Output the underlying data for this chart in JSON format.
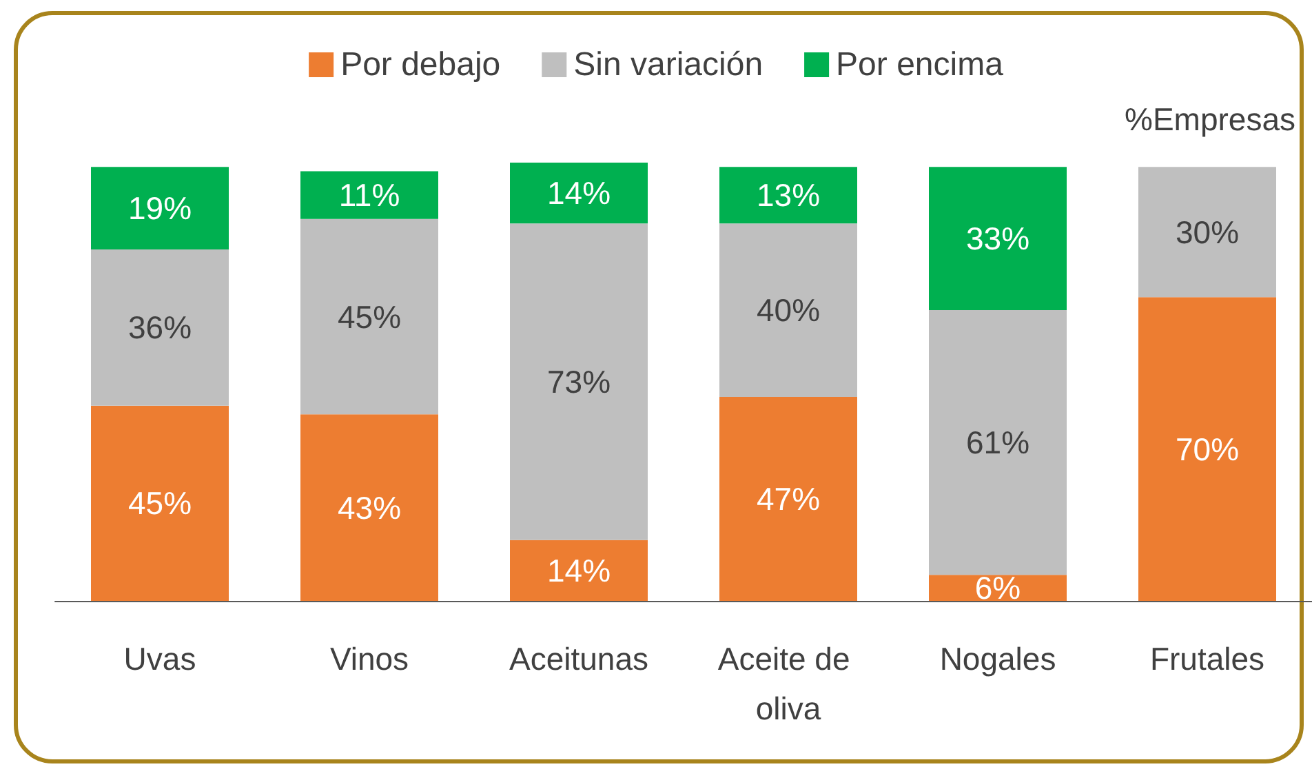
{
  "chart_data": {
    "type": "bar",
    "stacked": true,
    "categories": [
      "Uvas",
      "Vinos",
      "Aceitunas",
      "Aceite de oliva",
      "Nogales",
      "Frutales"
    ],
    "series": [
      {
        "name": "Por debajo",
        "color": "#ed7d31",
        "values": [
          45,
          43,
          14,
          47,
          6,
          70
        ],
        "value_labels": [
          "45%",
          "43%",
          "14%",
          "47%",
          "6%",
          "70%"
        ]
      },
      {
        "name": "Sin variación",
        "color": "#bfbfbf",
        "values": [
          36,
          45,
          73,
          40,
          61,
          30
        ],
        "value_labels": [
          "36%",
          "45%",
          "73%",
          "40%",
          "61%",
          "30%"
        ]
      },
      {
        "name": "Por encima",
        "color": "#00b050",
        "values": [
          19,
          11,
          14,
          13,
          33,
          null
        ],
        "value_labels": [
          "19%",
          "11%",
          "14%",
          "13%",
          "33%",
          null
        ]
      }
    ],
    "legend": "top",
    "annotations": [
      "%Empresas"
    ]
  }
}
